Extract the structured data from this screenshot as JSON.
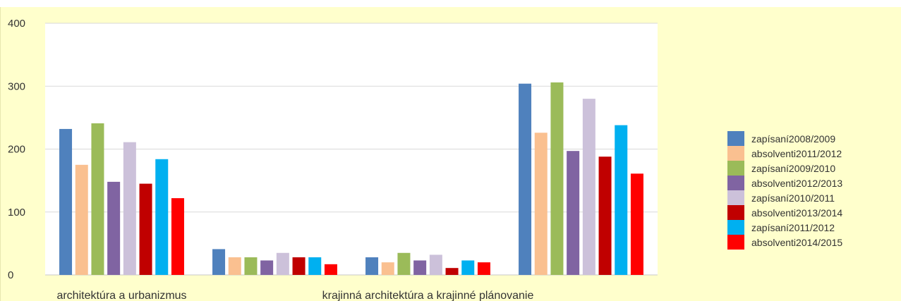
{
  "chart_data": {
    "type": "bar",
    "categories": [
      "architektúra a urbanizmus",
      "",
      "krajinná architektúra a krajinné plánovanie",
      ""
    ],
    "ylim": [
      0,
      400
    ],
    "yticks": [
      0,
      100,
      200,
      300,
      400
    ],
    "grid": true,
    "legend_position": "right",
    "series": [
      {
        "name": "zapísaní2008/2009",
        "color": "#4f81bd",
        "values": [
          232,
          41,
          28,
          304
        ]
      },
      {
        "name": "absolventi2011/2012",
        "color": "#fac090",
        "values": [
          175,
          28,
          20,
          226
        ]
      },
      {
        "name": "zapísaní2009/2010",
        "color": "#9bbb59",
        "values": [
          241,
          28,
          35,
          306
        ]
      },
      {
        "name": "absolventi2012/2013",
        "color": "#8064a2",
        "values": [
          148,
          23,
          23,
          197
        ]
      },
      {
        "name": "zapísaní2010/2011",
        "color": "#ccc1da",
        "values": [
          211,
          35,
          32,
          280
        ]
      },
      {
        "name": "absolventi2013/2014",
        "color": "#c00000",
        "values": [
          145,
          28,
          11,
          188
        ]
      },
      {
        "name": "zapísaní2011/2012",
        "color": "#00b0f0",
        "values": [
          184,
          28,
          23,
          238
        ]
      },
      {
        "name": "absolventi2014/2015",
        "color": "#ff0000",
        "values": [
          122,
          17,
          20,
          161
        ]
      }
    ]
  }
}
